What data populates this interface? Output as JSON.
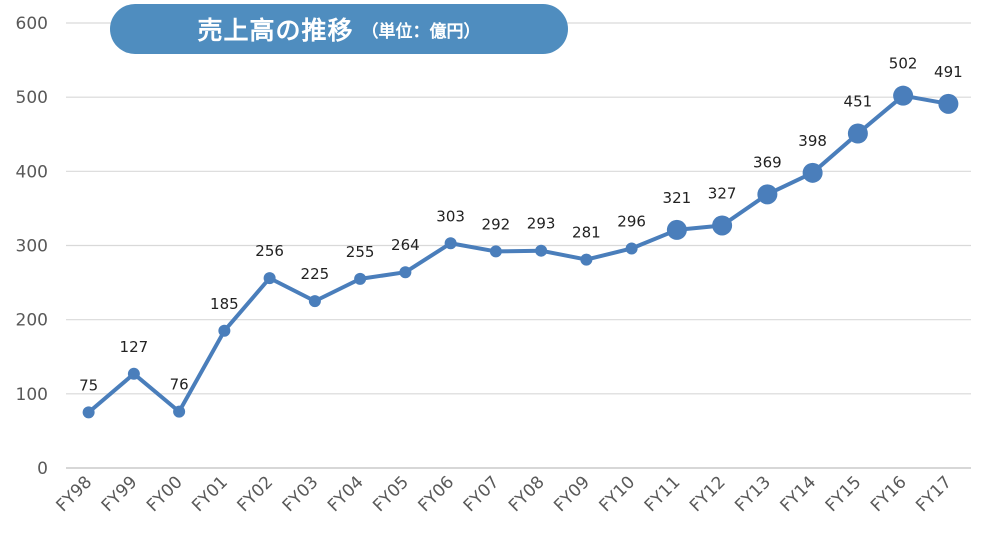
{
  "chart_data": {
    "type": "line",
    "title": "売上高の推移",
    "subtitle": "（単位：億円）",
    "xlabel": "",
    "ylabel": "",
    "ylim": [
      0,
      600
    ],
    "yticks": [
      0,
      100,
      200,
      300,
      400,
      500,
      600
    ],
    "grid": true,
    "legend": "none",
    "line_color": "#4a7ebb",
    "title_bg_color": "#4f8dbf",
    "categories": [
      "FY98",
      "FY99",
      "FY00",
      "FY01",
      "FY02",
      "FY03",
      "FY04",
      "FY05",
      "FY06",
      "FY07",
      "FY08",
      "FY09",
      "FY10",
      "FY11",
      "FY12",
      "FY13",
      "FY14",
      "FY15",
      "FY16",
      "FY17"
    ],
    "series": [
      {
        "values": [
          75,
          127,
          76,
          185,
          256,
          225,
          255,
          264,
          303,
          292,
          293,
          281,
          296,
          321,
          327,
          369,
          398,
          451,
          502,
          491
        ],
        "data_labels": [
          "75",
          "127",
          "76",
          "185",
          "256",
          "225",
          "255",
          "264",
          "303",
          "292",
          "293",
          "281",
          "296",
          "321",
          "327",
          "369",
          "398",
          "451",
          "502",
          "491"
        ]
      }
    ]
  }
}
